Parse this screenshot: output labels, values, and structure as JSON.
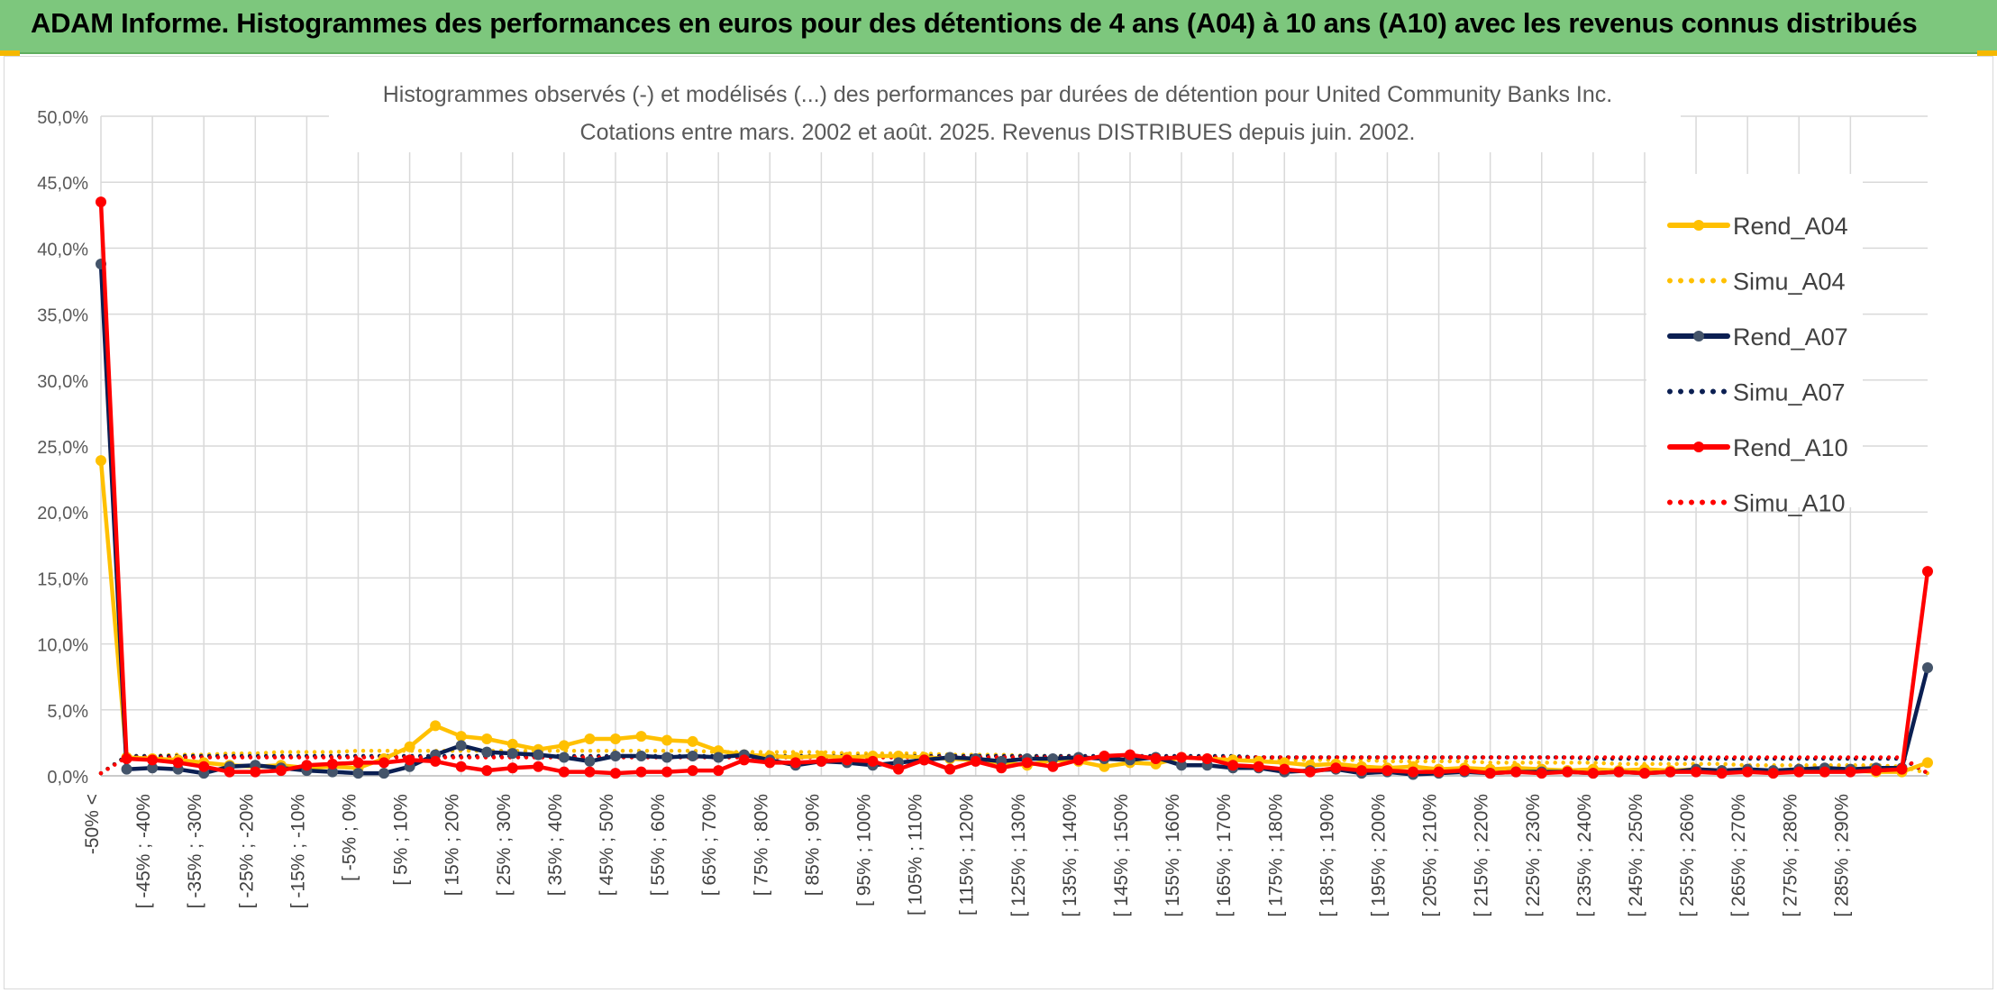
{
  "banner": {
    "title": "ADAM Informe. Histogrammes des performances en euros pour des détentions de 4 ans (A04) à 10 ans (A10) avec les revenus connus distribués"
  },
  "chart_data": {
    "type": "line",
    "title": "Histogrammes observés (-) et modélisés (...) des performances par durées de détention pour United Community Banks Inc.",
    "subtitle": "Cotations entre mars. 2002 et août. 2025. Revenus DISTRIBUES depuis juin. 2002.",
    "ylim": [
      0,
      50
    ],
    "yticks": [
      "0,0%",
      "5,0%",
      "10,0%",
      "15,0%",
      "20,0%",
      "25,0%",
      "30,0%",
      "35,0%",
      "40,0%",
      "45,0%",
      "50,0%"
    ],
    "grid": true,
    "legend_position": "right",
    "x_labels": [
      "-50% <",
      "[ -45% ; -40%",
      "[ -35% ; -30%",
      "[ -25% ; -20%",
      "[ -15% ; -10%",
      "[ -5% ; 0%",
      "[ 5% ; 10%",
      "[ 15% ; 20%",
      "[ 25% ; 30%",
      "[ 35% ; 40%",
      "[ 45% ; 50%",
      "[ 55% ; 60%",
      "[ 65% ; 70%",
      "[ 75% ; 80%",
      "[ 85% ; 90%",
      "[ 95% ; 100%",
      "[ 105% ; 110%",
      "[ 115% ; 120%",
      "[ 125% ; 130%",
      "[ 135% ; 140%",
      "[ 145% ; 150%",
      "[ 155% ; 160%",
      "[ 165% ; 170%",
      "[ 175% ; 180%",
      "[ 185% ; 190%",
      "[ 195% ; 200%",
      "[ 205% ; 210%",
      "[ 215% ; 220%",
      "[ 225% ; 230%",
      "[ 235% ; 240%",
      "[ 245% ; 250%",
      "[ 255% ; 260%",
      "[ 265% ; 270%",
      "[ 275% ; 280%",
      "[ 285% ; 290%"
    ],
    "series": [
      {
        "name": "Rend_A04",
        "color": "#ffc000",
        "style": "solid",
        "markers": true,
        "values": [
          23.9,
          1.4,
          1.3,
          1.2,
          1.0,
          0.8,
          0.7,
          0.8,
          0.6,
          0.7,
          0.6,
          1.3,
          2.2,
          3.8,
          3.0,
          2.8,
          2.4,
          2.0,
          2.3,
          2.8,
          2.8,
          3.0,
          2.7,
          2.6,
          1.9,
          1.6,
          1.5,
          1.4,
          1.5,
          1.4,
          1.5,
          1.5,
          1.4,
          1.3,
          1.2,
          1.0,
          0.8,
          1.2,
          1.1,
          0.7,
          1.0,
          0.9,
          1.4,
          1.3,
          1.2,
          1.1,
          1.0,
          0.8,
          0.9,
          0.7,
          0.6,
          0.7,
          0.5,
          0.6,
          0.5,
          0.6,
          0.5,
          0.4,
          0.5,
          0.4,
          0.5,
          0.4,
          0.5,
          0.4,
          0.4,
          0.3,
          0.4,
          0.3,
          0.4,
          0.3,
          0.3,
          1.0
        ]
      },
      {
        "name": "Simu_A04",
        "color": "#ffc000",
        "style": "dotted",
        "markers": false,
        "values": [
          0.2,
          1.5,
          1.5,
          1.6,
          1.6,
          1.7,
          1.7,
          1.8,
          1.8,
          1.8,
          1.9,
          1.9,
          1.9,
          1.9,
          1.9,
          1.9,
          1.9,
          1.9,
          1.9,
          1.9,
          1.9,
          1.9,
          1.9,
          1.9,
          1.8,
          1.8,
          1.8,
          1.8,
          1.8,
          1.7,
          1.7,
          1.7,
          1.7,
          1.6,
          1.6,
          1.6,
          1.5,
          1.5,
          1.5,
          1.4,
          1.4,
          1.4,
          1.4,
          1.3,
          1.3,
          1.3,
          1.2,
          1.2,
          1.2,
          1.2,
          1.1,
          1.1,
          1.1,
          1.1,
          1.0,
          1.0,
          1.0,
          1.0,
          1.0,
          0.9,
          0.9,
          0.9,
          0.9,
          0.9,
          0.8,
          0.8,
          0.8,
          0.8,
          0.8,
          0.8,
          0.7,
          0.2
        ]
      },
      {
        "name": "Rend_A07",
        "color": "#0b1f52",
        "style": "solid",
        "markers": true,
        "marker_color": "#44546a",
        "values": [
          38.8,
          0.5,
          0.6,
          0.5,
          0.2,
          0.7,
          0.8,
          0.6,
          0.4,
          0.3,
          0.2,
          0.2,
          0.7,
          1.6,
          2.3,
          1.8,
          1.7,
          1.6,
          1.4,
          1.1,
          1.5,
          1.5,
          1.4,
          1.5,
          1.4,
          1.6,
          1.2,
          0.8,
          1.1,
          1.0,
          0.8,
          1.0,
          1.2,
          1.4,
          1.3,
          1.1,
          1.3,
          1.3,
          1.4,
          1.3,
          1.2,
          1.4,
          0.8,
          0.8,
          0.6,
          0.6,
          0.3,
          0.4,
          0.5,
          0.2,
          0.3,
          0.1,
          0.2,
          0.3,
          0.2,
          0.3,
          0.3,
          0.3,
          0.2,
          0.3,
          0.2,
          0.3,
          0.5,
          0.4,
          0.5,
          0.4,
          0.5,
          0.6,
          0.5,
          0.6,
          0.6,
          8.2
        ]
      },
      {
        "name": "Simu_A07",
        "color": "#0b1f52",
        "style": "dotted",
        "markers": false,
        "values": [
          0.2,
          1.5,
          1.5,
          1.5,
          1.5,
          1.5,
          1.5,
          1.5,
          1.5,
          1.5,
          1.5,
          1.5,
          1.5,
          1.5,
          1.5,
          1.5,
          1.5,
          1.5,
          1.5,
          1.5,
          1.5,
          1.5,
          1.5,
          1.5,
          1.5,
          1.5,
          1.5,
          1.5,
          1.5,
          1.5,
          1.5,
          1.5,
          1.5,
          1.5,
          1.5,
          1.5,
          1.5,
          1.5,
          1.5,
          1.5,
          1.5,
          1.5,
          1.5,
          1.5,
          1.5,
          1.4,
          1.4,
          1.4,
          1.4,
          1.4,
          1.4,
          1.4,
          1.4,
          1.4,
          1.4,
          1.4,
          1.4,
          1.4,
          1.3,
          1.3,
          1.3,
          1.3,
          1.3,
          1.3,
          1.3,
          1.3,
          1.3,
          1.3,
          1.3,
          1.3,
          1.3,
          0.2
        ]
      },
      {
        "name": "Rend_A10",
        "color": "#ff0000",
        "style": "solid",
        "markers": true,
        "values": [
          43.5,
          1.3,
          1.2,
          1.0,
          0.7,
          0.3,
          0.3,
          0.4,
          0.8,
          0.9,
          1.0,
          1.0,
          1.2,
          1.1,
          0.7,
          0.4,
          0.6,
          0.7,
          0.3,
          0.3,
          0.2,
          0.3,
          0.3,
          0.4,
          0.4,
          1.2,
          1.0,
          1.0,
          1.1,
          1.2,
          1.1,
          0.5,
          1.2,
          0.5,
          1.1,
          0.6,
          1.0,
          0.7,
          1.2,
          1.5,
          1.6,
          1.3,
          1.4,
          1.3,
          0.8,
          0.7,
          0.5,
          0.3,
          0.6,
          0.4,
          0.4,
          0.3,
          0.3,
          0.4,
          0.2,
          0.3,
          0.2,
          0.3,
          0.2,
          0.3,
          0.2,
          0.3,
          0.3,
          0.2,
          0.3,
          0.2,
          0.3,
          0.3,
          0.3,
          0.4,
          0.5,
          15.5
        ]
      },
      {
        "name": "Simu_A10",
        "color": "#ff0000",
        "style": "dotted",
        "markers": false,
        "values": [
          0.2,
          1.4,
          1.4,
          1.4,
          1.4,
          1.4,
          1.4,
          1.4,
          1.4,
          1.4,
          1.4,
          1.4,
          1.4,
          1.4,
          1.4,
          1.4,
          1.4,
          1.4,
          1.4,
          1.4,
          1.4,
          1.4,
          1.4,
          1.4,
          1.4,
          1.4,
          1.4,
          1.4,
          1.4,
          1.4,
          1.4,
          1.4,
          1.4,
          1.4,
          1.4,
          1.4,
          1.4,
          1.4,
          1.4,
          1.4,
          1.4,
          1.4,
          1.4,
          1.4,
          1.4,
          1.4,
          1.4,
          1.4,
          1.4,
          1.4,
          1.4,
          1.4,
          1.4,
          1.4,
          1.4,
          1.4,
          1.4,
          1.4,
          1.4,
          1.4,
          1.4,
          1.4,
          1.4,
          1.4,
          1.4,
          1.4,
          1.4,
          1.4,
          1.4,
          1.4,
          1.4,
          0.2
        ]
      }
    ]
  }
}
